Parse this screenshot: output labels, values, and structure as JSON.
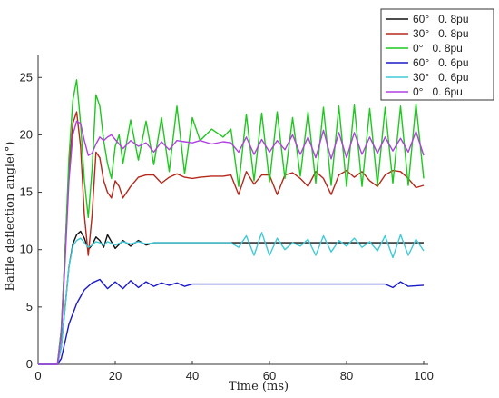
{
  "chart_data": {
    "type": "line",
    "xlabel": "Time (ms)",
    "ylabel": "Baffle deflection angle(°)",
    "xlim": [
      0,
      100
    ],
    "ylim": [
      0,
      27
    ],
    "x_ticks": [
      "0",
      "20",
      "40",
      "60",
      "80",
      "100"
    ],
    "y_ticks": [
      "0",
      "5",
      "10",
      "15",
      "20",
      "25"
    ],
    "grid": false,
    "legend_position": "top-right",
    "series": [
      {
        "name": "60°   0. 8pu",
        "color": "#111111",
        "x": [
          0,
          5,
          6,
          7,
          8,
          9,
          10,
          11,
          12,
          13,
          14,
          15,
          16,
          17,
          18,
          20,
          22,
          24,
          26,
          28,
          30,
          33,
          36,
          40,
          45,
          50,
          60,
          70,
          80,
          90,
          100
        ],
        "y": [
          0,
          0,
          1.5,
          5,
          8.5,
          10.5,
          11.3,
          11.6,
          11.0,
          10.0,
          10.4,
          11.1,
          10.8,
          10.2,
          11.3,
          10.1,
          10.8,
          10.3,
          10.8,
          10.4,
          10.6,
          10.6,
          10.6,
          10.6,
          10.6,
          10.6,
          10.6,
          10.6,
          10.6,
          10.6,
          10.6
        ]
      },
      {
        "name": "30°   0. 8pu",
        "color": "#b5281c",
        "x": [
          0,
          5,
          6,
          7,
          8,
          9,
          10,
          11,
          12,
          13,
          14,
          15,
          16,
          17,
          18,
          19,
          20,
          21,
          22,
          24,
          26,
          28,
          30,
          32,
          34,
          36,
          38,
          40,
          42,
          45,
          48,
          50,
          52,
          54,
          56,
          58,
          60,
          62,
          64,
          66,
          68,
          70,
          72,
          74,
          76,
          78,
          80,
          82,
          84,
          86,
          88,
          90,
          92,
          94,
          96,
          98,
          100
        ],
        "y": [
          0,
          0,
          3,
          10,
          17,
          21,
          22,
          19,
          13,
          9.5,
          13,
          18.5,
          18,
          16,
          15,
          14.5,
          16,
          15.5,
          14.5,
          15.5,
          16.3,
          16.5,
          16.5,
          15.8,
          16.3,
          16.6,
          16.3,
          16.2,
          16.3,
          16.4,
          16.4,
          16.5,
          14.8,
          16.8,
          15.7,
          16.5,
          16.5,
          14.8,
          16.5,
          16.7,
          16.2,
          15.5,
          16.8,
          16.2,
          14.8,
          16.5,
          16.9,
          16.3,
          16.8,
          16.0,
          15.5,
          16.5,
          16.9,
          16.8,
          16.2,
          15.4,
          15.6
        ]
      },
      {
        "name": "0°   0. 8pu",
        "color": "#1ec81e",
        "x": [
          0,
          5,
          6,
          7,
          8,
          9,
          10,
          11,
          12,
          13,
          14,
          15,
          16,
          17,
          18,
          19,
          20,
          21,
          22,
          24,
          26,
          28,
          30,
          32,
          34,
          36,
          38,
          40,
          42,
          45,
          48,
          50,
          52,
          54,
          56,
          58,
          60,
          62,
          64,
          66,
          68,
          70,
          72,
          74,
          76,
          78,
          80,
          82,
          84,
          86,
          88,
          90,
          92,
          94,
          96,
          98,
          100
        ],
        "y": [
          0,
          0,
          3,
          10,
          18,
          23,
          24.8,
          21,
          16,
          12.8,
          17,
          23.5,
          22.5,
          19.5,
          17.5,
          16.2,
          19,
          20,
          17.5,
          21.3,
          17.8,
          21.2,
          17.4,
          21.5,
          16.8,
          22.5,
          16.6,
          21.5,
          19.5,
          20.5,
          19.8,
          20.5,
          15.5,
          21.8,
          16.0,
          21.9,
          15.9,
          22.0,
          16.2,
          21.5,
          16.4,
          22.0,
          15.8,
          22.4,
          15.6,
          22.5,
          15.5,
          22.6,
          15.5,
          22.3,
          15.6,
          22.4,
          15.8,
          22.5,
          15.6,
          22.7,
          16.2
        ]
      },
      {
        "name": "60°   0. 6pu",
        "color": "#1a1ac8",
        "x": [
          0,
          5,
          6,
          7,
          8,
          10,
          12,
          14,
          16,
          18,
          20,
          22,
          24,
          26,
          28,
          30,
          32,
          34,
          36,
          38,
          40,
          45,
          50,
          55,
          60,
          70,
          80,
          90,
          92,
          94,
          96,
          100
        ],
        "y": [
          0,
          0,
          0.5,
          2.0,
          3.5,
          5.3,
          6.5,
          7.1,
          7.4,
          6.6,
          7.2,
          6.6,
          7.3,
          6.7,
          7.2,
          6.8,
          7.1,
          6.9,
          7.1,
          6.8,
          7.0,
          7.0,
          7.0,
          7.0,
          7.0,
          7.0,
          7.0,
          7.0,
          6.7,
          7.2,
          6.8,
          6.9
        ]
      },
      {
        "name": "30°   0. 6pu",
        "color": "#3fcad8",
        "x": [
          0,
          5,
          6,
          7,
          8,
          9,
          10,
          11,
          12,
          13,
          14,
          15,
          16,
          17,
          18,
          20,
          22,
          24,
          26,
          28,
          30,
          33,
          36,
          40,
          45,
          48,
          50,
          52,
          54,
          56,
          58,
          60,
          62,
          64,
          66,
          68,
          70,
          72,
          74,
          76,
          78,
          80,
          82,
          84,
          86,
          88,
          90,
          92,
          94,
          96,
          98,
          100
        ],
        "y": [
          0,
          0,
          1.5,
          5,
          8.5,
          10.3,
          10.8,
          11.0,
          10.6,
          10.2,
          10.4,
          10.7,
          10.6,
          10.4,
          10.7,
          10.4,
          10.7,
          10.5,
          10.7,
          10.5,
          10.6,
          10.6,
          10.6,
          10.6,
          10.6,
          10.6,
          10.6,
          10.2,
          11.2,
          9.5,
          11.5,
          9.5,
          11.0,
          10.0,
          10.6,
          10.3,
          10.9,
          9.5,
          11.2,
          9.8,
          10.8,
          10.3,
          11.0,
          10.2,
          10.7,
          9.9,
          11.2,
          9.3,
          11.3,
          9.5,
          10.9,
          9.9
        ]
      },
      {
        "name": "0°   0. 6pu",
        "color": "#b040e0",
        "x": [
          0,
          5,
          6,
          7,
          8,
          9,
          10,
          11,
          12,
          13,
          14,
          15,
          16,
          17,
          18,
          19,
          20,
          22,
          24,
          26,
          28,
          30,
          32,
          34,
          36,
          38,
          40,
          42,
          45,
          48,
          50,
          52,
          54,
          56,
          58,
          60,
          62,
          64,
          66,
          68,
          70,
          72,
          74,
          76,
          78,
          80,
          82,
          84,
          86,
          88,
          90,
          92,
          94,
          96,
          98,
          100
        ],
        "y": [
          0,
          0,
          2.5,
          9,
          16,
          20,
          21.2,
          21.0,
          19.5,
          18.2,
          18.4,
          19.2,
          19.8,
          19.5,
          19.8,
          20.0,
          19.6,
          18.8,
          19.5,
          19.0,
          19.3,
          18.5,
          19.4,
          18.7,
          19.5,
          19.4,
          19.3,
          19.5,
          19.2,
          19.4,
          19.3,
          18.5,
          19.8,
          18.3,
          19.6,
          18.5,
          19.5,
          18.7,
          20.0,
          18.3,
          19.8,
          18.0,
          20.4,
          17.9,
          20.2,
          18.0,
          20.2,
          18.3,
          19.8,
          18.4,
          19.8,
          18.6,
          19.7,
          18.5,
          20.3,
          18.2
        ]
      }
    ]
  }
}
